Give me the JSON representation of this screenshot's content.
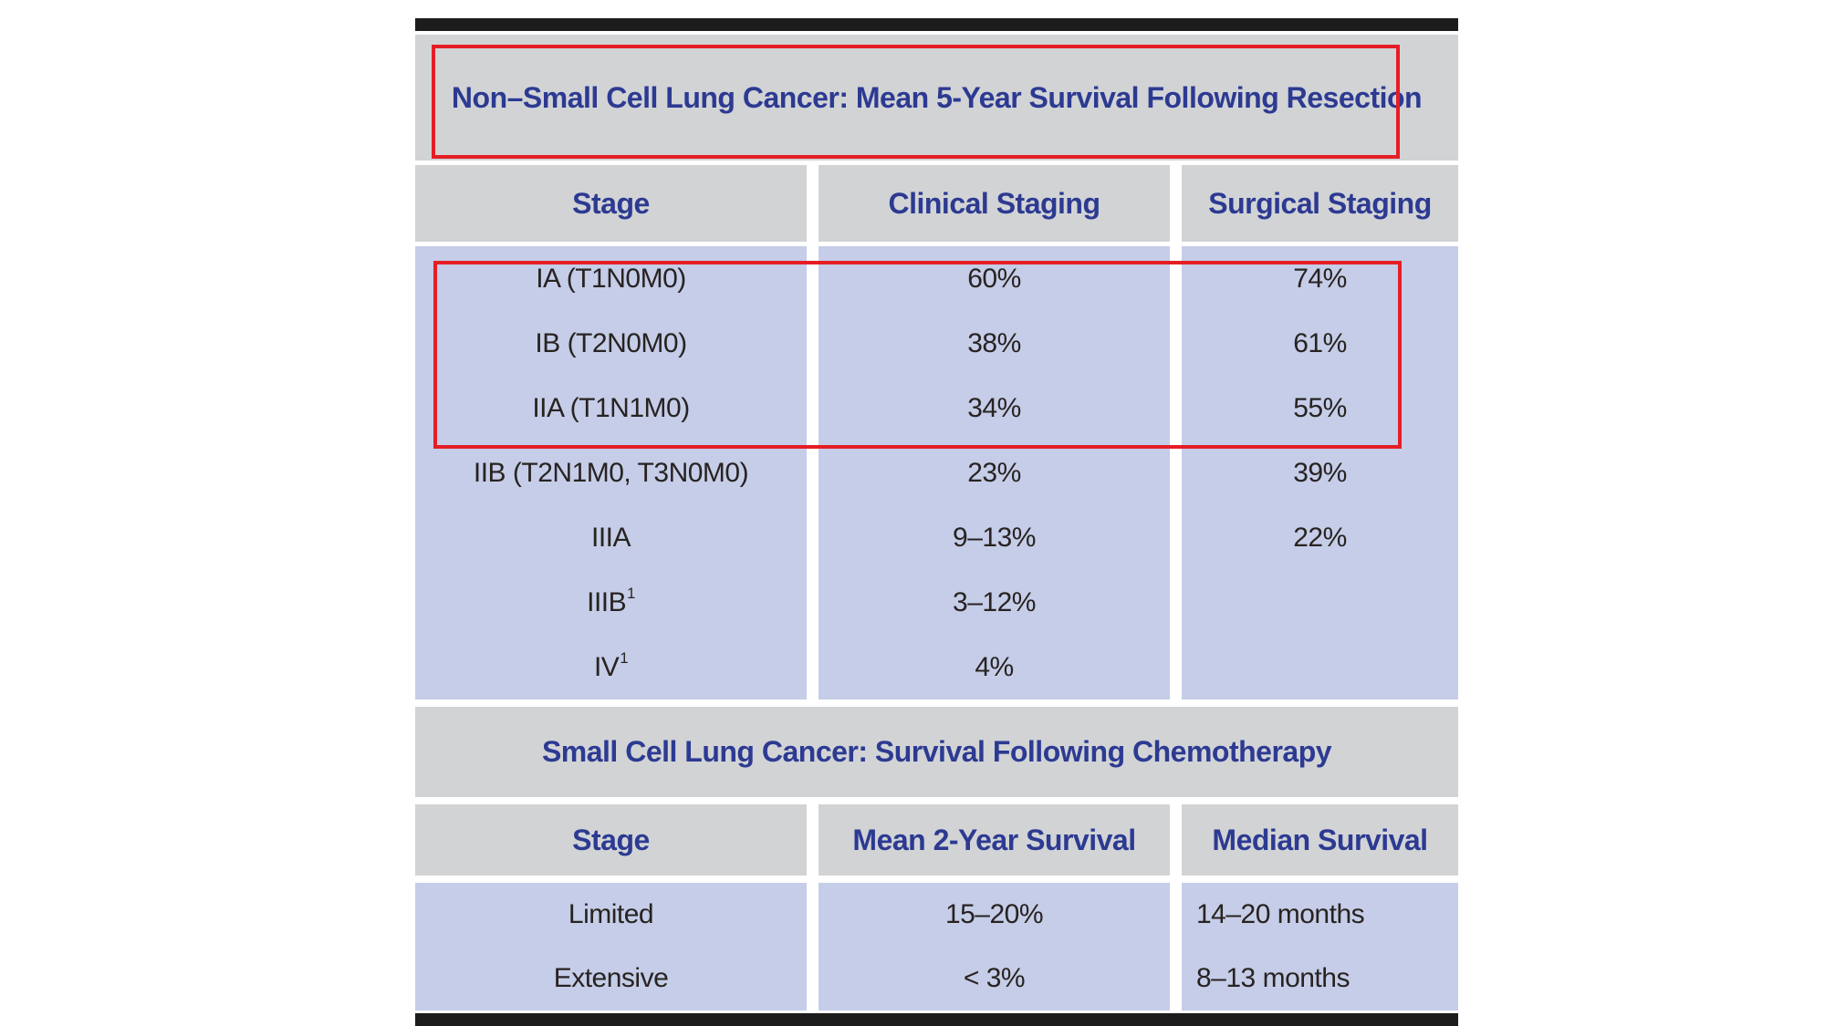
{
  "colors": {
    "page_background": "#ffffff",
    "black_bar": "#1d1c1c",
    "band_gray": "#d2d3d5",
    "row_lavender": "#c5cde8",
    "heading_navy": "#2c3a92",
    "body_text": "#282321",
    "highlight_red": "#e51e25"
  },
  "nsclc": {
    "title": "Non–Small Cell Lung Cancer: Mean 5-Year Survival Following Resection",
    "columns": {
      "stage": "Stage",
      "clinical": "Clinical Staging",
      "surgical": "Surgical Staging"
    },
    "rows": [
      {
        "stage": "IA (T1N0M0)",
        "clinical": "60%",
        "surgical": "74%"
      },
      {
        "stage": "IB (T2N0M0)",
        "clinical": "38%",
        "surgical": "61%"
      },
      {
        "stage": "IIA (T1N1M0)",
        "clinical": "34%",
        "surgical": "55%"
      },
      {
        "stage": "IIB (T2N1M0, T3N0M0)",
        "clinical": "23%",
        "surgical": "39%"
      },
      {
        "stage": "IIIA",
        "clinical": "9–13%",
        "surgical": "22%"
      },
      {
        "stage": "IIIB",
        "stage_sup": "1",
        "clinical": "3–12%",
        "surgical": ""
      },
      {
        "stage": "IV",
        "stage_sup": "1",
        "clinical": "4%",
        "surgical": ""
      }
    ],
    "highlight": {
      "title_outlined": true,
      "rows_outlined": [
        0,
        1,
        2
      ]
    }
  },
  "sclc": {
    "title": "Small Cell Lung Cancer: Survival Following Chemotherapy",
    "columns": {
      "stage": "Stage",
      "mean2yr": "Mean 2-Year Survival",
      "median": "Median Survival"
    },
    "rows": [
      {
        "stage": "Limited",
        "mean2yr": "15–20%",
        "median": "14–20 months"
      },
      {
        "stage": "Extensive",
        "mean2yr": "< 3%",
        "median": "8–13 months"
      }
    ]
  }
}
